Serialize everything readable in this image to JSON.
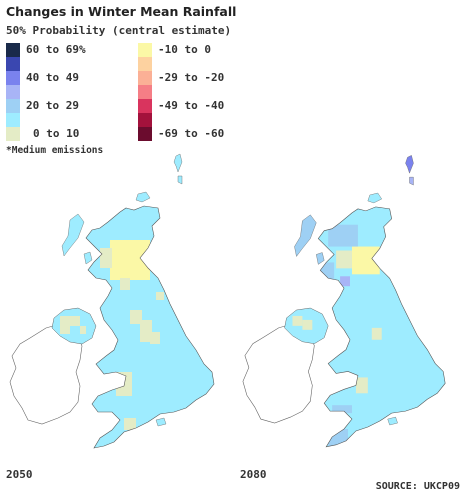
{
  "title": "Changes in Winter Mean Rainfall",
  "subtitle": "50% Probability (central estimate)",
  "legend": [
    {
      "label": "60 to 69%",
      "color": "#1a2a4a"
    },
    {
      "label": "",
      "color": "#3a47b0"
    },
    {
      "label": "40 to 49",
      "color": "#7a82ee"
    },
    {
      "label": "",
      "color": "#a8b4f6"
    },
    {
      "label": "20 to 29",
      "color": "#9ed0f4"
    },
    {
      "label": "",
      "color": "#9eecff"
    },
    {
      "label": "0 to 10",
      "color": "#e4ecc6"
    },
    {
      "label": "-10 to 0",
      "color": "#fbf8a6"
    },
    {
      "label": "",
      "color": "#fdd2a0"
    },
    {
      "label": "-29 to -20",
      "color": "#fbb096"
    },
    {
      "label": "",
      "color": "#f57e86"
    },
    {
      "label": "-49 to -40",
      "color": "#d9345e"
    },
    {
      "label": "",
      "color": "#a3123c"
    },
    {
      "label": "-69 to -60",
      "color": "#6b0c2e"
    }
  ],
  "footnote": "*Medium emissions",
  "maps": [
    {
      "year": "2050"
    },
    {
      "year": "2080"
    }
  ],
  "source": "SOURCE: UKCP09"
}
